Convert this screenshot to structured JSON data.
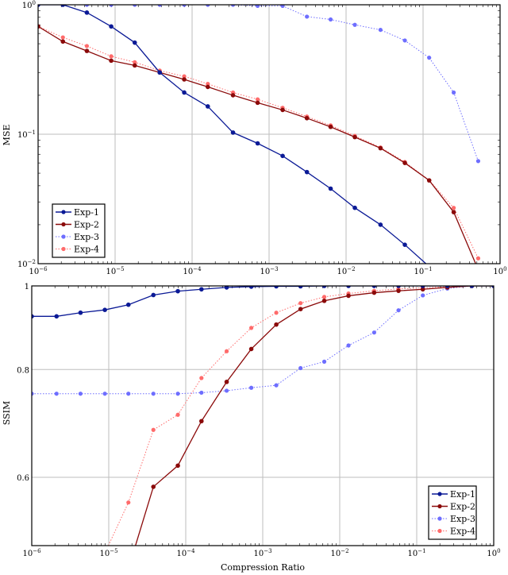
{
  "chart_data": [
    {
      "type": "line",
      "xlabel": "",
      "ylabel": "MSE",
      "xscale": "log",
      "yscale": "log",
      "xlim": [
        1e-06,
        1
      ],
      "ylim": [
        0.01,
        1
      ],
      "grid": true,
      "legend_position": "bottom-left",
      "x_tick_labels": [
        "10^-6",
        "10^-5",
        "10^-4",
        "10^-3",
        "10^-2",
        "10^-1",
        "10^0"
      ],
      "y_tick_labels": [
        "10^0",
        "10^-1",
        "10^-2"
      ],
      "x": [
        1e-06,
        2.1e-06,
        4.3e-06,
        8.9e-06,
        1.8e-05,
        3.8e-05,
        7.9e-05,
        0.00016,
        0.00034,
        0.00071,
        0.0015,
        0.0031,
        0.0063,
        0.013,
        0.028,
        0.058,
        0.12,
        0.25,
        0.52
      ],
      "series": [
        {
          "name": "Exp-1",
          "color": "#0b1a96",
          "style": "solid",
          "values": [
            1.0,
            1.0,
            0.87,
            0.68,
            0.51,
            0.3,
            0.21,
            0.164,
            0.103,
            0.085,
            0.068,
            0.051,
            0.038,
            0.027,
            0.02,
            0.014,
            0.0095,
            null,
            null
          ]
        },
        {
          "name": "Exp-2",
          "color": "#8b0a0a",
          "style": "solid",
          "values": [
            0.68,
            0.52,
            0.44,
            0.37,
            0.34,
            0.3,
            0.265,
            0.232,
            0.2,
            0.175,
            0.154,
            0.133,
            0.114,
            0.095,
            0.078,
            0.06,
            0.044,
            0.025,
            0.009
          ]
        },
        {
          "name": "Exp-3",
          "color": "#6e6eff",
          "style": "dotted",
          "values": [
            1.0,
            1.0,
            1.0,
            1.0,
            1.0,
            1.0,
            1.0,
            1.0,
            1.0,
            0.98,
            0.98,
            0.81,
            0.77,
            0.7,
            0.64,
            0.53,
            0.39,
            0.21,
            0.062
          ]
        },
        {
          "name": "Exp-4",
          "color": "#ff6b6b",
          "style": "dotted",
          "values": [
            0.68,
            0.56,
            0.48,
            0.4,
            0.36,
            0.31,
            0.28,
            0.245,
            0.21,
            0.186,
            0.16,
            0.137,
            0.117,
            0.097,
            0.079,
            0.061,
            0.044,
            0.027,
            0.011
          ]
        }
      ]
    },
    {
      "type": "line",
      "xlabel": "Compression Ratio",
      "ylabel": "SSIM",
      "xscale": "log",
      "yscale": "log",
      "xlim": [
        1e-06,
        1
      ],
      "ylim": [
        0.5,
        1
      ],
      "grid": true,
      "legend_position": "bottom-right",
      "x_tick_labels": [
        "10^-6",
        "10^-5",
        "10^-4",
        "10^-3",
        "10^-2",
        "10^-1",
        "10^0"
      ],
      "y_tick_labels": [
        "1",
        "0.8",
        "0.6"
      ],
      "y_ticks": [
        1,
        0.8,
        0.6
      ],
      "x": [
        1e-06,
        2.1e-06,
        4.3e-06,
        8.9e-06,
        1.8e-05,
        3.8e-05,
        7.9e-05,
        0.00016,
        0.00034,
        0.00071,
        0.0015,
        0.0031,
        0.0063,
        0.013,
        0.028,
        0.058,
        0.12,
        0.25,
        0.52,
        1.0
      ],
      "series": [
        {
          "name": "Exp-1",
          "color": "#0b1a96",
          "style": "solid",
          "values": [
            0.922,
            0.922,
            0.931,
            0.938,
            0.951,
            0.976,
            0.986,
            0.991,
            0.996,
            0.998,
            0.999,
            0.999,
            1.0,
            1.0,
            1.0,
            1.0,
            1.0,
            1.0,
            1.0,
            1.0
          ]
        },
        {
          "name": "Exp-2",
          "color": "#8b0a0a",
          "style": "solid",
          "values": [
            null,
            null,
            null,
            null,
            0.47,
            0.585,
            0.619,
            0.697,
            0.774,
            0.845,
            0.902,
            0.94,
            0.961,
            0.974,
            0.982,
            0.987,
            0.991,
            0.996,
            1.0,
            1.0
          ]
        },
        {
          "name": "Exp-3",
          "color": "#6e6eff",
          "style": "dotted",
          "values": [
            0.75,
            0.75,
            0.75,
            0.75,
            0.75,
            0.75,
            0.75,
            0.752,
            0.756,
            0.762,
            0.767,
            0.803,
            0.817,
            0.853,
            0.883,
            0.937,
            0.975,
            0.993,
            1.0,
            1.0
          ]
        },
        {
          "name": "Exp-4",
          "color": "#ff6b6b",
          "style": "dotted",
          "values": [
            null,
            null,
            null,
            0.49,
            0.561,
            0.681,
            0.709,
            0.782,
            0.84,
            0.894,
            0.931,
            0.955,
            0.971,
            0.98,
            0.987,
            0.992,
            0.995,
            0.998,
            1.0,
            1.0
          ]
        }
      ]
    }
  ]
}
